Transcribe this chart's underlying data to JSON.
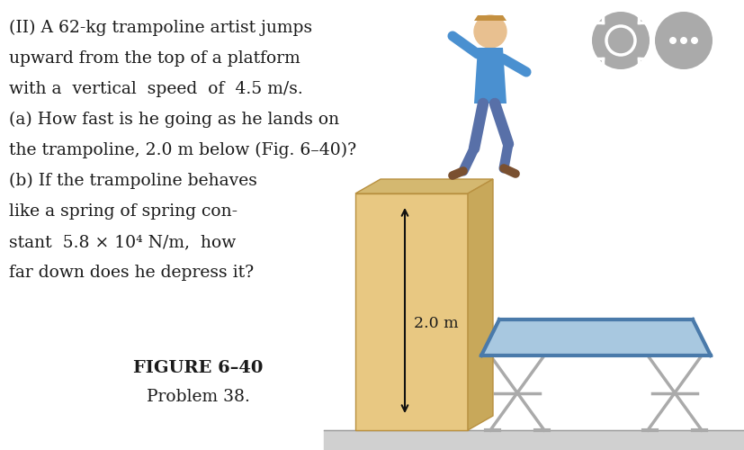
{
  "bg_color": "#ffffff",
  "text_color": "#1a1a1a",
  "main_text_lines": [
    "(II) A 62-kg trampoline artist jumps",
    "upward from the top of a platform",
    "with a  vertical  speed  of  4.5 m/s.",
    "(a) How fast is he going as he lands on",
    "the trampoline, 2.0 m below (Fig. 6–40)?",
    "(b) If the trampoline behaves",
    "like a spring of spring con-",
    "stant  5.8 × 10⁴ N/m,  how",
    "far down does he depress it?"
  ],
  "figure_label": "FIGURE 6–40",
  "problem_label": "Problem 38.",
  "annotation": "2.0 m",
  "platform_color": "#e8c882",
  "platform_dark": "#c8a85a",
  "platform_face": "#f0d898",
  "platform_top": "#d4b870",
  "trampoline_fill": "#a8c8e0",
  "trampoline_border": "#4a7aaa",
  "trampoline_frame": "#aaaaaa",
  "floor_color": "#d0d0d0",
  "icon_color": "#aaaaaa",
  "arrow_color": "#111111"
}
